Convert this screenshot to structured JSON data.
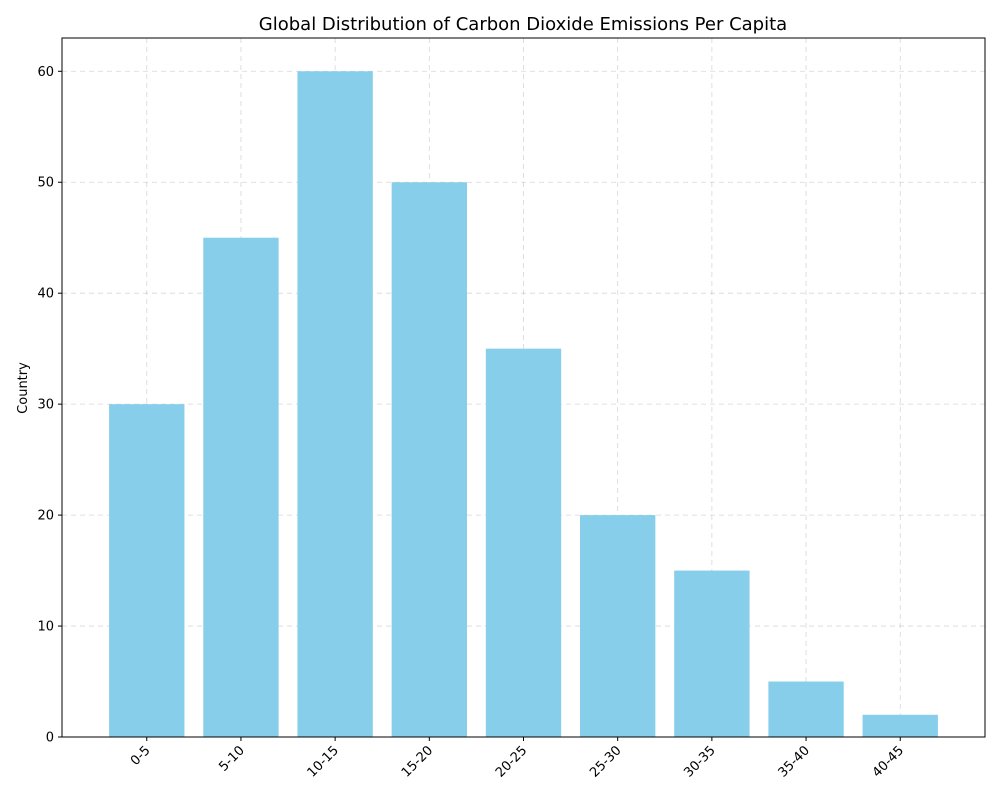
{
  "chart_data": {
    "type": "bar",
    "title": "Global Distribution of Carbon Dioxide Emissions Per Capita",
    "xlabel": "",
    "ylabel": "Country",
    "categories": [
      "0-5",
      "5-10",
      "10-15",
      "15-20",
      "20-25",
      "25-30",
      "30-35",
      "35-40",
      "40-45"
    ],
    "values": [
      30,
      45,
      60,
      50,
      35,
      20,
      15,
      5,
      2
    ],
    "ylim": [
      0,
      63
    ],
    "yticks": [
      0,
      10,
      20,
      30,
      40,
      50,
      60
    ],
    "grid": true,
    "bar_color": "#87ceeb",
    "x_tick_rotation": 45
  }
}
